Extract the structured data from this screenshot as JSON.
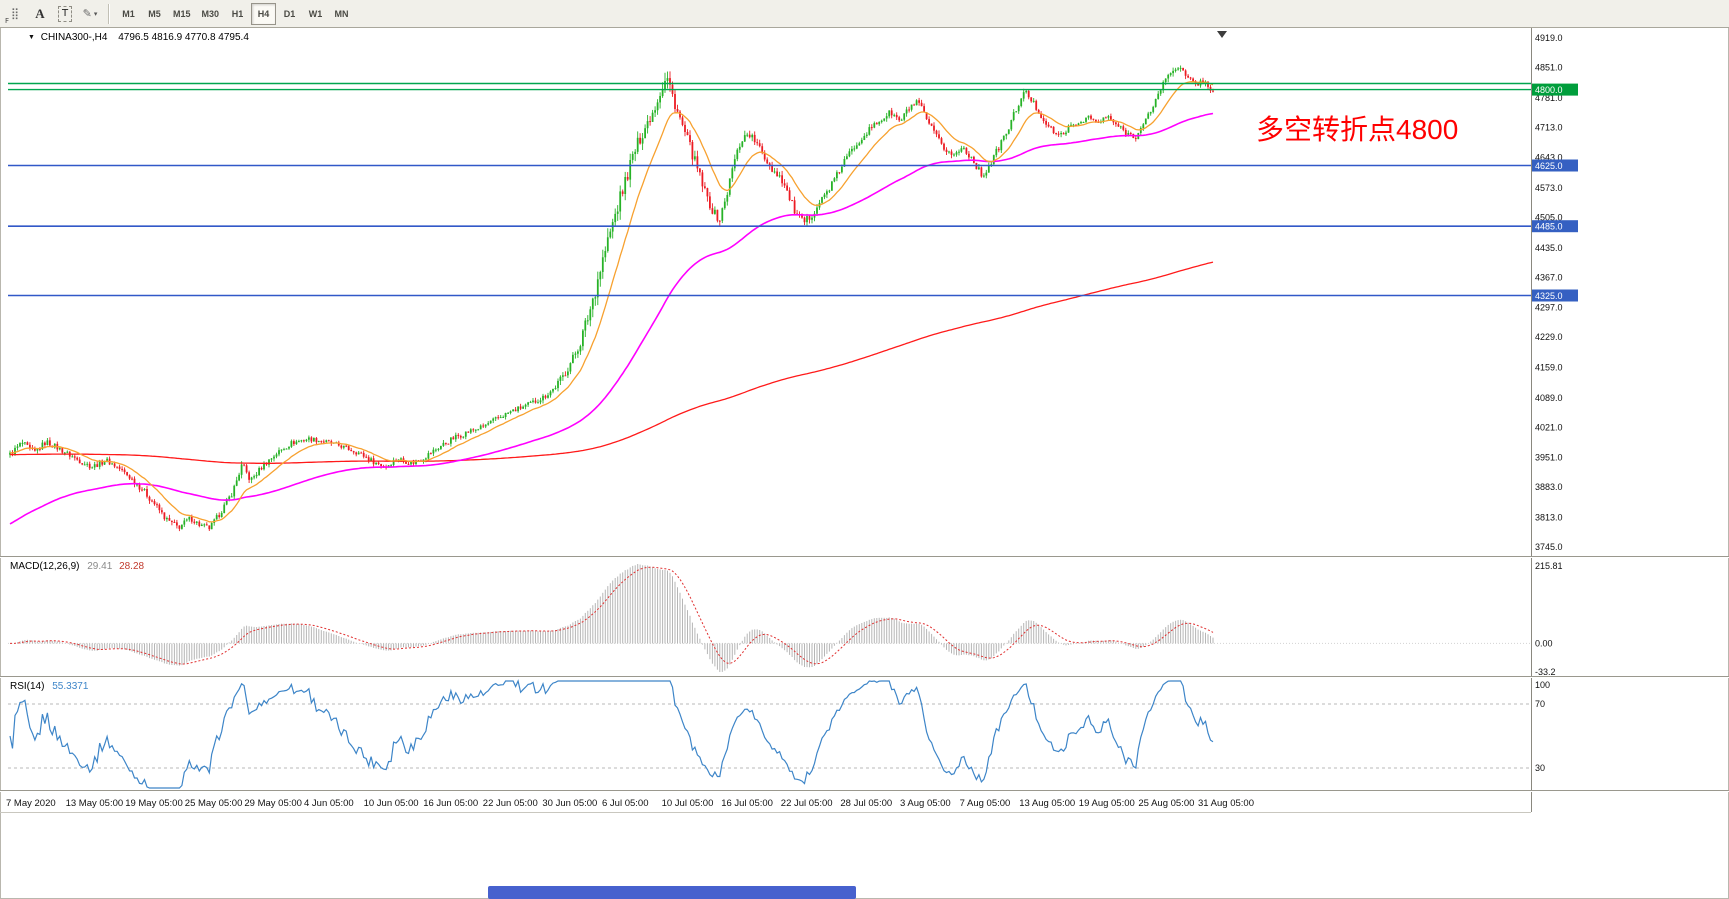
{
  "window": {
    "bottom_bar_color": "#4761CE"
  },
  "toolbar": {
    "tools": [
      {
        "name": "docking-grid",
        "glyph": "⣿",
        "sub": "F"
      },
      {
        "name": "text-label",
        "glyph": "A"
      },
      {
        "name": "text-box",
        "glyph": "T"
      },
      {
        "name": "drawing-tools",
        "glyph": "✎",
        "caret": "▾"
      }
    ],
    "timeframes": [
      {
        "label": "M1",
        "active": false
      },
      {
        "label": "M5",
        "active": false
      },
      {
        "label": "M15",
        "active": false
      },
      {
        "label": "M30",
        "active": false
      },
      {
        "label": "H1",
        "active": false
      },
      {
        "label": "H4",
        "active": true
      },
      {
        "label": "D1",
        "active": false
      },
      {
        "label": "W1",
        "active": false
      },
      {
        "label": "MN",
        "active": false
      }
    ]
  },
  "chart": {
    "symbol": "CHINA300-,H4",
    "symbol_caret": "▼",
    "ohlc_text": "4796.5 4816.9 4770.8 4795.4",
    "annotation": {
      "text": "多空转折点4800",
      "color": "#FF0000"
    },
    "colors": {
      "up": "#27B227",
      "down": "#EC1C24",
      "ma_fast": "#F7A12F",
      "ma_mid": "#FF00FF",
      "ma_slow": "#FF1A1A"
    },
    "hlines": [
      {
        "price": 4814,
        "color": "#00A64F",
        "width": 1.4
      },
      {
        "price": 4800,
        "color": "#00A64F",
        "width": 1.4
      },
      {
        "price": 4625,
        "color": "#3158C8",
        "width": 1.6
      },
      {
        "price": 4485,
        "color": "#3158C8",
        "width": 1.6
      },
      {
        "price": 4325,
        "color": "#3158C8",
        "width": 1.6
      }
    ],
    "badges": [
      {
        "label": "4800.0",
        "price": 4800,
        "bg": "#009E3C"
      },
      {
        "label": "4625.0",
        "price": 4625,
        "bg": "#3560C2"
      },
      {
        "label": "4485.0",
        "price": 4485,
        "bg": "#3560C2"
      },
      {
        "label": "4325.0",
        "price": 4325,
        "bg": "#3560C2"
      }
    ]
  },
  "macd": {
    "label": "MACD(12,26,9)",
    "value_main": "29.41",
    "value_signal": "28.28",
    "axis": {
      "max": "215.81",
      "zero": "0.00",
      "min": "-33.2"
    }
  },
  "rsi": {
    "label": "RSI(14)",
    "value": "55.3371",
    "axis": {
      "max": "100",
      "upper": "70",
      "lower": "30"
    }
  },
  "chart_data": {
    "type": "candlestick",
    "symbol": "CHINA300-",
    "timeframe": "H4",
    "ohlc_current": {
      "open": 4796.5,
      "high": 4816.9,
      "low": 4770.8,
      "close": 4795.4
    },
    "y_axis_ticks": [
      "4919.0",
      "4851.0",
      "4781.0",
      "4713.0",
      "4643.0",
      "4573.0",
      "4505.0",
      "4435.0",
      "4367.0",
      "4297.0",
      "4229.0",
      "4159.0",
      "4089.0",
      "4021.0",
      "3951.0",
      "3883.0",
      "3813.0",
      "3745.0"
    ],
    "price_levels": [
      4800,
      4625,
      4485,
      4325
    ],
    "x_labels": [
      "7 May 2020",
      "13 May 05:00",
      "19 May 05:00",
      "25 May 05:00",
      "29 May 05:00",
      "4 Jun 05:00",
      "10 Jun 05:00",
      "16 Jun 05:00",
      "22 Jun 05:00",
      "30 Jun 05:00",
      "6 Jul 05:00",
      "10 Jul 05:00",
      "16 Jul 05:00",
      "22 Jul 05:00",
      "28 Jul 05:00",
      "3 Aug 05:00",
      "7 Aug 05:00",
      "13 Aug 05:00",
      "19 Aug 05:00",
      "25 Aug 05:00",
      "31 Aug 05:00"
    ],
    "price_path_keypoints": [
      [
        0.0,
        3958,
        16
      ],
      [
        0.01,
        3985,
        17
      ],
      [
        0.02,
        3962,
        15
      ],
      [
        0.03,
        3988,
        15
      ],
      [
        0.042,
        3970,
        14
      ],
      [
        0.055,
        3948,
        14
      ],
      [
        0.068,
        3930,
        14
      ],
      [
        0.08,
        3945,
        14
      ],
      [
        0.09,
        3928,
        14
      ],
      [
        0.1,
        3905,
        15
      ],
      [
        0.11,
        3878,
        16
      ],
      [
        0.12,
        3845,
        16
      ],
      [
        0.13,
        3808,
        16
      ],
      [
        0.14,
        3790,
        15
      ],
      [
        0.15,
        3812,
        14
      ],
      [
        0.158,
        3795,
        14
      ],
      [
        0.166,
        3788,
        14
      ],
      [
        0.175,
        3825,
        15
      ],
      [
        0.185,
        3872,
        16
      ],
      [
        0.193,
        3935,
        17
      ],
      [
        0.2,
        3898,
        16
      ],
      [
        0.21,
        3932,
        14
      ],
      [
        0.222,
        3962,
        14
      ],
      [
        0.234,
        3985,
        13
      ],
      [
        0.248,
        3995,
        12
      ],
      [
        0.262,
        3988,
        12
      ],
      [
        0.275,
        3978,
        12
      ],
      [
        0.29,
        3962,
        13
      ],
      [
        0.302,
        3942,
        13
      ],
      [
        0.312,
        3930,
        14
      ],
      [
        0.322,
        3950,
        14
      ],
      [
        0.334,
        3938,
        14
      ],
      [
        0.346,
        3955,
        15
      ],
      [
        0.358,
        3978,
        15
      ],
      [
        0.37,
        3998,
        15
      ],
      [
        0.382,
        4012,
        14
      ],
      [
        0.393,
        4022,
        13
      ],
      [
        0.405,
        4042,
        13
      ],
      [
        0.417,
        4058,
        13
      ],
      [
        0.43,
        4072,
        14
      ],
      [
        0.443,
        4090,
        15
      ],
      [
        0.452,
        4110,
        17
      ],
      [
        0.46,
        4140,
        20
      ],
      [
        0.468,
        4180,
        26
      ],
      [
        0.475,
        4225,
        34
      ],
      [
        0.482,
        4290,
        46
      ],
      [
        0.489,
        4370,
        52
      ],
      [
        0.496,
        4440,
        46
      ],
      [
        0.503,
        4510,
        42
      ],
      [
        0.51,
        4575,
        40
      ],
      [
        0.517,
        4640,
        36
      ],
      [
        0.524,
        4690,
        34
      ],
      [
        0.53,
        4725,
        32
      ],
      [
        0.536,
        4760,
        30
      ],
      [
        0.541,
        4800,
        32
      ],
      [
        0.546,
        4828,
        42
      ],
      [
        0.552,
        4775,
        32
      ],
      [
        0.558,
        4722,
        29
      ],
      [
        0.564,
        4678,
        28
      ],
      [
        0.571,
        4620,
        28
      ],
      [
        0.578,
        4560,
        26
      ],
      [
        0.585,
        4515,
        24
      ],
      [
        0.59,
        4500,
        23
      ],
      [
        0.596,
        4560,
        25
      ],
      [
        0.602,
        4635,
        24
      ],
      [
        0.608,
        4685,
        22
      ],
      [
        0.614,
        4700,
        20
      ],
      [
        0.62,
        4678,
        19
      ],
      [
        0.627,
        4645,
        20
      ],
      [
        0.634,
        4615,
        21
      ],
      [
        0.641,
        4598,
        21
      ],
      [
        0.648,
        4550,
        22
      ],
      [
        0.654,
        4508,
        21
      ],
      [
        0.66,
        4492,
        20
      ],
      [
        0.666,
        4510,
        19
      ],
      [
        0.673,
        4540,
        18
      ],
      [
        0.68,
        4568,
        18
      ],
      [
        0.687,
        4600,
        17
      ],
      [
        0.694,
        4638,
        16
      ],
      [
        0.701,
        4665,
        16
      ],
      [
        0.708,
        4690,
        16
      ],
      [
        0.716,
        4712,
        15
      ],
      [
        0.724,
        4730,
        15
      ],
      [
        0.732,
        4748,
        16
      ],
      [
        0.74,
        4726,
        17
      ],
      [
        0.748,
        4760,
        17
      ],
      [
        0.755,
        4770,
        17
      ],
      [
        0.762,
        4730,
        18
      ],
      [
        0.77,
        4690,
        18
      ],
      [
        0.778,
        4660,
        17
      ],
      [
        0.785,
        4648,
        16
      ],
      [
        0.792,
        4668,
        16
      ],
      [
        0.8,
        4640,
        16
      ],
      [
        0.808,
        4600,
        17
      ],
      [
        0.815,
        4628,
        16
      ],
      [
        0.822,
        4668,
        17
      ],
      [
        0.83,
        4710,
        17
      ],
      [
        0.837,
        4760,
        17
      ],
      [
        0.844,
        4795,
        17
      ],
      [
        0.85,
        4772,
        16
      ],
      [
        0.857,
        4740,
        15
      ],
      [
        0.864,
        4712,
        14
      ],
      [
        0.872,
        4692,
        14
      ],
      [
        0.88,
        4712,
        13
      ],
      [
        0.888,
        4722,
        12
      ],
      [
        0.896,
        4738,
        12
      ],
      [
        0.904,
        4722,
        12
      ],
      [
        0.912,
        4738,
        12
      ],
      [
        0.92,
        4718,
        13
      ],
      [
        0.928,
        4700,
        13
      ],
      [
        0.936,
        4692,
        14
      ],
      [
        0.943,
        4722,
        15
      ],
      [
        0.95,
        4762,
        16
      ],
      [
        0.957,
        4805,
        17
      ],
      [
        0.964,
        4840,
        18
      ],
      [
        0.971,
        4855,
        17
      ],
      [
        0.978,
        4828,
        16
      ],
      [
        0.985,
        4812,
        15
      ],
      [
        0.992,
        4820,
        14
      ],
      [
        1.0,
        4796,
        13
      ]
    ],
    "indicators": {
      "macd": {
        "params": [
          12,
          26,
          9
        ],
        "current_main": 29.41,
        "current_signal": 28.28,
        "axis_max": 215.81,
        "axis_min": -33.2
      },
      "rsi": {
        "period": 14,
        "current": 55.3371,
        "levels": [
          70,
          30
        ]
      }
    }
  }
}
